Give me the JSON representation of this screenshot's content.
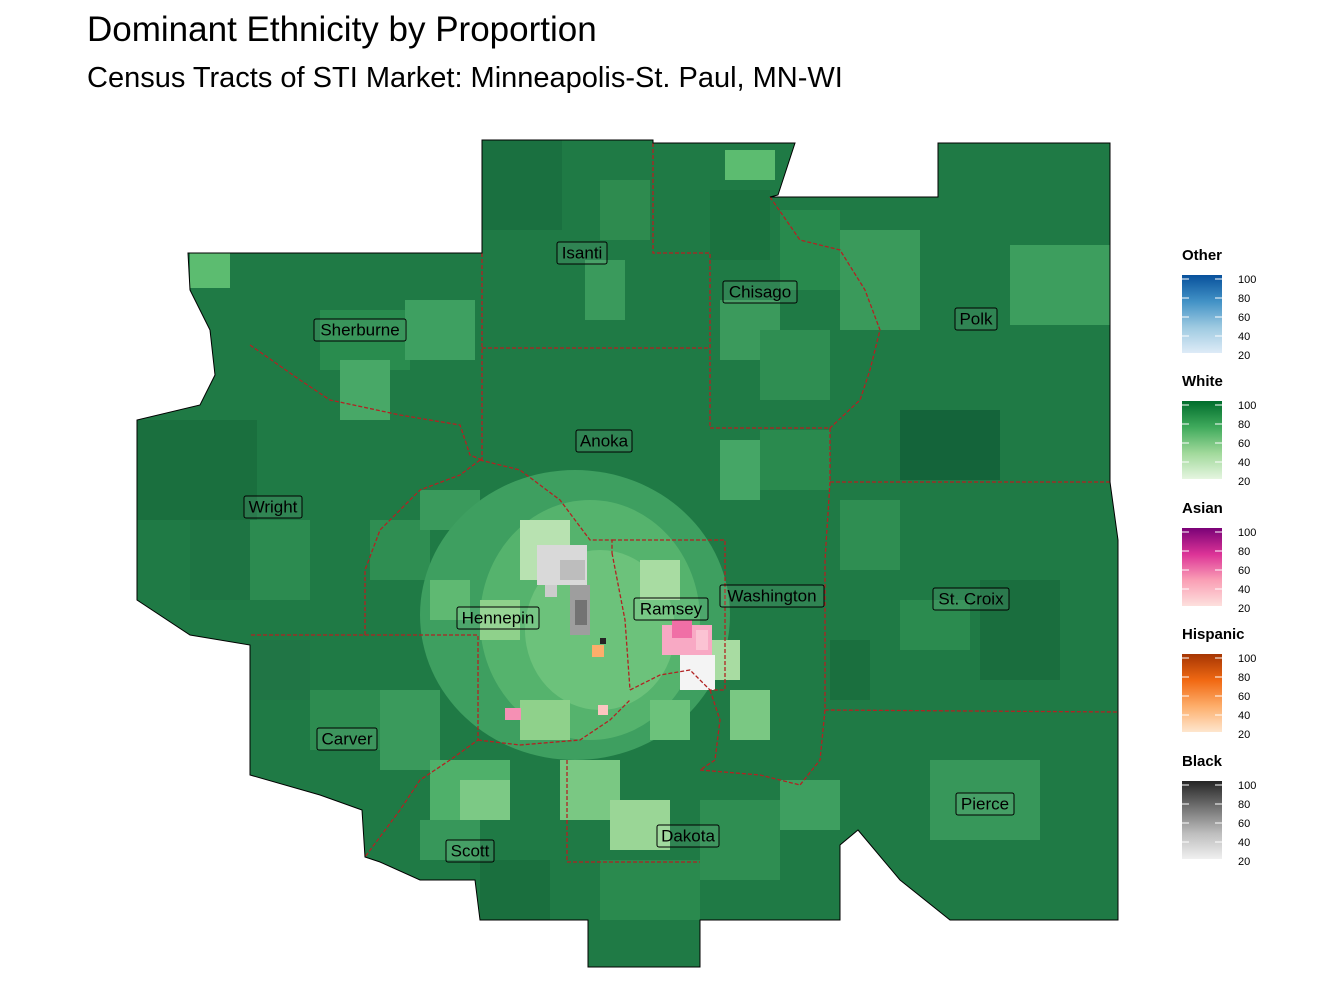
{
  "title": "Dominant Ethnicity by Proportion",
  "subtitle": "Census Tracts of STI Market: Minneapolis-St. Paul, MN-WI",
  "map": {
    "boundary_color": "#b22222",
    "base_color": "#1f7a45",
    "counties": [
      {
        "name": "Isanti"
      },
      {
        "name": "Chisago"
      },
      {
        "name": "Polk"
      },
      {
        "name": "Sherburne"
      },
      {
        "name": "Anoka"
      },
      {
        "name": "Wright"
      },
      {
        "name": "Hennepin"
      },
      {
        "name": "Ramsey"
      },
      {
        "name": "Washington"
      },
      {
        "name": "St. Croix"
      },
      {
        "name": "Carver"
      },
      {
        "name": "Pierce"
      },
      {
        "name": "Dakota"
      },
      {
        "name": "Scott"
      }
    ]
  },
  "legend": [
    {
      "title": "Other",
      "colors": [
        "#deebf7",
        "#9ecae1",
        "#4292c6",
        "#08519c"
      ],
      "ticks": [
        "100",
        "80",
        "60",
        "40",
        "20"
      ]
    },
    {
      "title": "White",
      "colors": [
        "#e5f5e0",
        "#a1d99b",
        "#41ab5d",
        "#006d2c"
      ],
      "ticks": [
        "100",
        "80",
        "60",
        "40",
        "20"
      ]
    },
    {
      "title": "Asian",
      "colors": [
        "#fde0dd",
        "#fa9fb5",
        "#dd3497",
        "#7a0177"
      ],
      "ticks": [
        "100",
        "80",
        "60",
        "40",
        "20"
      ]
    },
    {
      "title": "Hispanic",
      "colors": [
        "#fee6ce",
        "#fdae6b",
        "#f16913",
        "#a63603"
      ],
      "ticks": [
        "100",
        "80",
        "60",
        "40",
        "20"
      ]
    },
    {
      "title": "Black",
      "colors": [
        "#f0f0f0",
        "#bdbdbd",
        "#737373",
        "#252525"
      ],
      "ticks": [
        "100",
        "80",
        "60",
        "40",
        "20"
      ]
    }
  ]
}
